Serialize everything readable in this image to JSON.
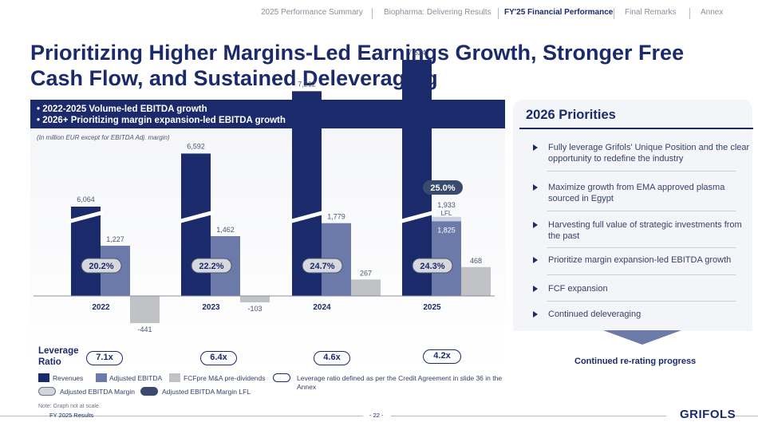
{
  "nav": {
    "items": [
      {
        "label": "2025 Performance Summary",
        "active": false
      },
      {
        "label": "Biopharma: Delivering Results",
        "active": false
      },
      {
        "label": "FY'25 Financial Performance",
        "active": true
      },
      {
        "label": "Final Remarks",
        "active": false
      },
      {
        "label": "Annex",
        "active": false
      }
    ]
  },
  "title": "Prioritizing Higher Margins-Led Earnings Growth, Stronger Free Cash Flow, and Sustained Deleveraging",
  "left": {
    "bullet1": "•  2022-2025 Volume-led EBITDA growth",
    "bullet2": "•  2026+ Prioritizing margin expansion-led EBITDA growth",
    "unit_note": "(In million EUR except for EBITDA Adj. margin)"
  },
  "chart_data": {
    "type": "bar",
    "categories": [
      "2022",
      "2023",
      "2024",
      "2025"
    ],
    "series": [
      {
        "name": "Revenues",
        "values": [
          6064,
          6592,
          7212,
          7524
        ],
        "color": "#1b2a6b"
      },
      {
        "name": "Adjusted EBITDA",
        "values": [
          1227,
          1462,
          1779,
          1825
        ],
        "color": "#6b7aa8"
      },
      {
        "name": "FCFpre M&A pre-dividends",
        "values": [
          -441,
          -103,
          267,
          468
        ],
        "color": "#c0c2c6"
      }
    ],
    "labels": {
      "revenues": [
        "6,064",
        "6,592",
        "7,212",
        "7,524"
      ],
      "ebitda": [
        "1,227",
        "1,462",
        "1,779",
        "1,825"
      ],
      "fcf": [
        "-441",
        "-103",
        "267",
        "468"
      ],
      "ebitda_lfl": "1,933",
      "lfl_suffix": "LFL"
    },
    "ebitda_lfl_2025": 1933,
    "margins": [
      "20.2%",
      "22.2%",
      "24.7%",
      "24.3%"
    ],
    "margin_lfl_2025": "25.0%",
    "axis_broken": true,
    "colors": {
      "revenues": "#1b2a6b",
      "ebitda": "#6b7aa8",
      "ebitda_lfl": "#c9cfe2",
      "fcf": "#c0c2c6",
      "margin_lfl": "#3a4a6e"
    }
  },
  "leverage": {
    "label_line1": "Leverage",
    "label_line2": "Ratio",
    "values": [
      "7.1x",
      "6.4x",
      "4.6x",
      "4.2x"
    ]
  },
  "legend": {
    "revenues": "Revenues",
    "ebitda": "Adjusted EBITDA",
    "fcf": "FCFpre M&A pre-dividends",
    "leverage_note": "Leverage ratio defined as per the Credit Agreement in slide 36 in the Annex",
    "margin": "Adjusted EBITDA Margin",
    "margin_lfl": "Adjusted EBITDA Margin LFL"
  },
  "note": "Note: Graph not at scale.",
  "footer": {
    "left": "FY 2025 Results",
    "page": "- 22 -",
    "logo": "GRIFOLS"
  },
  "right": {
    "title": "2026 Priorities",
    "items": [
      "Fully leverage Grifols' Unique Position and the clear opportunity to redefine the industry",
      "Maximize growth from EMA approved plasma sourced in Egypt",
      "Harvesting full value of strategic investments from the past",
      "Prioritize margin expansion-led EBITDA growth",
      "FCF expansion",
      "Continued deleveraging"
    ],
    "bottom": "Continued re-rating progress"
  }
}
